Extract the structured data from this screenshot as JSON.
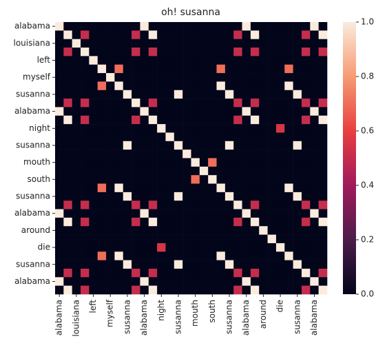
{
  "chart_data": {
    "type": "heatmap",
    "title": "oh! susanna",
    "categories": [
      "alabama",
      null,
      "louisiana",
      null,
      "left",
      null,
      "myself",
      null,
      "susanna",
      null,
      "alabama",
      null,
      "night",
      null,
      "susanna",
      null,
      "mouth",
      null,
      "south",
      null,
      "susanna",
      null,
      "alabama",
      null,
      "around",
      null,
      "die",
      null,
      "susanna",
      null,
      "alabama",
      null
    ],
    "values": [
      [
        1,
        0,
        0,
        0,
        0,
        0,
        0,
        0,
        0,
        0,
        1,
        0,
        0,
        0,
        0,
        0,
        0,
        0,
        0,
        0,
        0,
        0,
        1,
        0,
        0,
        0,
        0,
        0,
        0,
        0,
        1,
        0
      ],
      [
        0,
        1,
        0,
        0.5,
        0,
        0,
        0,
        0,
        0,
        0.5,
        0,
        1,
        0,
        0,
        0,
        0,
        0,
        0,
        0,
        0,
        0,
        0.5,
        0,
        1,
        0,
        0,
        0,
        0,
        0,
        0.5,
        0,
        1
      ],
      [
        0,
        0,
        1,
        0,
        0,
        0,
        0,
        0,
        0,
        0,
        0,
        0,
        0,
        0,
        0,
        0,
        0,
        0,
        0,
        0,
        0,
        0,
        0,
        0,
        0,
        0,
        0,
        0,
        0,
        0,
        0,
        0
      ],
      [
        0,
        0.5,
        0,
        1,
        0,
        0,
        0,
        0,
        0,
        0.5,
        0,
        0.5,
        0,
        0,
        0,
        0,
        0,
        0,
        0,
        0,
        0,
        0.5,
        0,
        0.5,
        0,
        0,
        0,
        0,
        0,
        0.5,
        0,
        0.5
      ],
      [
        0,
        0,
        0,
        0,
        1,
        0,
        0,
        0,
        0,
        0,
        0,
        0,
        0,
        0,
        0,
        0,
        0,
        0,
        0,
        0,
        0,
        0,
        0,
        0,
        0,
        0,
        0,
        0,
        0,
        0,
        0,
        0
      ],
      [
        0,
        0,
        0,
        0,
        0,
        1,
        0,
        0.7,
        0,
        0,
        0,
        0,
        0,
        0,
        0,
        0,
        0,
        0,
        0,
        0.7,
        0,
        0,
        0,
        0,
        0,
        0,
        0,
        0.7,
        0,
        0,
        0,
        0
      ],
      [
        0,
        0,
        0,
        0,
        0,
        0,
        1,
        0,
        0,
        0,
        0,
        0,
        0,
        0,
        0,
        0,
        0,
        0,
        0,
        0,
        0,
        0,
        0,
        0,
        0,
        0,
        0,
        0,
        0,
        0,
        0,
        0
      ],
      [
        0,
        0,
        0,
        0,
        0,
        0.7,
        0,
        1,
        0,
        0,
        0,
        0,
        0,
        0,
        0,
        0,
        0,
        0,
        0,
        1,
        0,
        0,
        0,
        0,
        0,
        0,
        0,
        1,
        0,
        0,
        0,
        0
      ],
      [
        0,
        0,
        0,
        0,
        0,
        0,
        0,
        0,
        1,
        0,
        0,
        0,
        0,
        0,
        1,
        0,
        0,
        0,
        0,
        0,
        1,
        0,
        0,
        0,
        0,
        0,
        0,
        0,
        1,
        0,
        0,
        0
      ],
      [
        0,
        0.5,
        0,
        0.5,
        0,
        0,
        0,
        0,
        0,
        1,
        0,
        0.5,
        0,
        0,
        0,
        0,
        0,
        0,
        0,
        0,
        0,
        0.5,
        0,
        0.5,
        0,
        0,
        0,
        0,
        0,
        0.5,
        0,
        0.5
      ],
      [
        1,
        0,
        0,
        0,
        0,
        0,
        0,
        0,
        0,
        0,
        1,
        0,
        0,
        0,
        0,
        0,
        0,
        0,
        0,
        0,
        0,
        0,
        1,
        0,
        0,
        0,
        0,
        0,
        0,
        0,
        1,
        0
      ],
      [
        0,
        1,
        0,
        0.5,
        0,
        0,
        0,
        0,
        0,
        0.5,
        0,
        1,
        0,
        0,
        0,
        0,
        0,
        0,
        0,
        0,
        0,
        0.5,
        0,
        1,
        0,
        0,
        0,
        0,
        0,
        0.5,
        0,
        1
      ],
      [
        0,
        0,
        0,
        0,
        0,
        0,
        0,
        0,
        0,
        0,
        0,
        0,
        1,
        0,
        0,
        0,
        0,
        0,
        0,
        0,
        0,
        0,
        0,
        0,
        0,
        0,
        0.55,
        0,
        0,
        0,
        0,
        0
      ],
      [
        0,
        0,
        0,
        0,
        0,
        0,
        0,
        0,
        0,
        0,
        0,
        0,
        0,
        1,
        0,
        0,
        0,
        0,
        0,
        0,
        0,
        0,
        0,
        0,
        0,
        0,
        0,
        0,
        0,
        0,
        0,
        0
      ],
      [
        0,
        0,
        0,
        0,
        0,
        0,
        0,
        0,
        1,
        0,
        0,
        0,
        0,
        0,
        1,
        0,
        0,
        0,
        0,
        0,
        1,
        0,
        0,
        0,
        0,
        0,
        0,
        0,
        1,
        0,
        0,
        0
      ],
      [
        0,
        0,
        0,
        0,
        0,
        0,
        0,
        0,
        0,
        0,
        0,
        0,
        0,
        0,
        0,
        1,
        0,
        0,
        0,
        0,
        0,
        0,
        0,
        0,
        0,
        0,
        0,
        0,
        0,
        0,
        0,
        0
      ],
      [
        0,
        0,
        0,
        0,
        0,
        0,
        0,
        0,
        0,
        0,
        0,
        0,
        0,
        0,
        0,
        0,
        1,
        0,
        0.7,
        0,
        0,
        0,
        0,
        0,
        0,
        0,
        0,
        0,
        0,
        0,
        0,
        0
      ],
      [
        0,
        0,
        0,
        0,
        0,
        0,
        0,
        0,
        0,
        0,
        0,
        0,
        0,
        0,
        0,
        0,
        0,
        1,
        0,
        0,
        0,
        0,
        0,
        0,
        0,
        0,
        0,
        0,
        0,
        0,
        0,
        0
      ],
      [
        0,
        0,
        0,
        0,
        0,
        0,
        0,
        0,
        0,
        0,
        0,
        0,
        0,
        0,
        0,
        0,
        0.7,
        0,
        1,
        0,
        0,
        0,
        0,
        0,
        0,
        0,
        0,
        0,
        0,
        0,
        0,
        0
      ],
      [
        0,
        0,
        0,
        0,
        0,
        0.7,
        0,
        1,
        0,
        0,
        0,
        0,
        0,
        0,
        0,
        0,
        0,
        0,
        0,
        1,
        0,
        0,
        0,
        0,
        0,
        0,
        0,
        1,
        0,
        0,
        0,
        0
      ],
      [
        0,
        0,
        0,
        0,
        0,
        0,
        0,
        0,
        1,
        0,
        0,
        0,
        0,
        0,
        1,
        0,
        0,
        0,
        0,
        0,
        1,
        0,
        0,
        0,
        0,
        0,
        0,
        0,
        1,
        0,
        0,
        0
      ],
      [
        0,
        0.5,
        0,
        0.5,
        0,
        0,
        0,
        0,
        0,
        0.5,
        0,
        0.5,
        0,
        0,
        0,
        0,
        0,
        0,
        0,
        0,
        0,
        1,
        0,
        0.5,
        0,
        0,
        0,
        0,
        0,
        0.5,
        0,
        0.5
      ],
      [
        1,
        0,
        0,
        0,
        0,
        0,
        0,
        0,
        0,
        0,
        1,
        0,
        0,
        0,
        0,
        0,
        0,
        0,
        0,
        0,
        0,
        0,
        1,
        0,
        0,
        0,
        0,
        0,
        0,
        0,
        1,
        0
      ],
      [
        0,
        1,
        0,
        0.5,
        0,
        0,
        0,
        0,
        0,
        0.5,
        0,
        1,
        0,
        0,
        0,
        0,
        0,
        0,
        0,
        0,
        0,
        0.5,
        0,
        1,
        0,
        0,
        0,
        0,
        0,
        0.5,
        0,
        1
      ],
      [
        0,
        0,
        0,
        0,
        0,
        0,
        0,
        0,
        0,
        0,
        0,
        0,
        0,
        0,
        0,
        0,
        0,
        0,
        0,
        0,
        0,
        0,
        0,
        0,
        1,
        0,
        0,
        0,
        0,
        0,
        0,
        0
      ],
      [
        0,
        0,
        0,
        0,
        0,
        0,
        0,
        0,
        0,
        0,
        0,
        0,
        0,
        0,
        0,
        0,
        0,
        0,
        0,
        0,
        0,
        0,
        0,
        0,
        0,
        1,
        0,
        0,
        0,
        0,
        0,
        0
      ],
      [
        0,
        0,
        0,
        0,
        0,
        0,
        0,
        0,
        0,
        0,
        0,
        0,
        0.55,
        0,
        0,
        0,
        0,
        0,
        0,
        0,
        0,
        0,
        0,
        0,
        0,
        0,
        1,
        0,
        0,
        0,
        0,
        0
      ],
      [
        0,
        0,
        0,
        0,
        0,
        0.7,
        0,
        1,
        0,
        0,
        0,
        0,
        0,
        0,
        0,
        0,
        0,
        0,
        0,
        1,
        0,
        0,
        0,
        0,
        0,
        0,
        0,
        1,
        0,
        0,
        0,
        0
      ],
      [
        0,
        0,
        0,
        0,
        0,
        0,
        0,
        0,
        1,
        0,
        0,
        0,
        0,
        0,
        1,
        0,
        0,
        0,
        0,
        0,
        1,
        0,
        0,
        0,
        0,
        0,
        0,
        0,
        1,
        0,
        0,
        0
      ],
      [
        0,
        0.5,
        0,
        0.5,
        0,
        0,
        0,
        0,
        0,
        0.5,
        0,
        0.5,
        0,
        0,
        0,
        0,
        0,
        0,
        0,
        0,
        0,
        0.5,
        0,
        0.5,
        0,
        0,
        0,
        0,
        0,
        1,
        0,
        0.5
      ],
      [
        1,
        0,
        0,
        0,
        0,
        0,
        0,
        0,
        0,
        0,
        1,
        0,
        0,
        0,
        0,
        0,
        0,
        0,
        0,
        0,
        0,
        0,
        1,
        0,
        0,
        0,
        0,
        0,
        0,
        0,
        1,
        0
      ],
      [
        0,
        1,
        0,
        0.5,
        0,
        0,
        0,
        0,
        0,
        0.5,
        0,
        1,
        0,
        0,
        0,
        0,
        0,
        0,
        0,
        0,
        0,
        0.5,
        0,
        1,
        0,
        0,
        0,
        0,
        0,
        0.5,
        0,
        1
      ]
    ],
    "colormap": [
      "#03051a",
      "#4c1d4b",
      "#a11a5b",
      "#e83f3f",
      "#f69c73",
      "#faebdd"
    ],
    "clim": [
      0,
      1
    ],
    "cticks": [
      {
        "value": 0,
        "label": "0.0"
      },
      0.2,
      0.4,
      0.6,
      0.8,
      {
        "value": 1,
        "label": "1.0"
      }
    ]
  }
}
